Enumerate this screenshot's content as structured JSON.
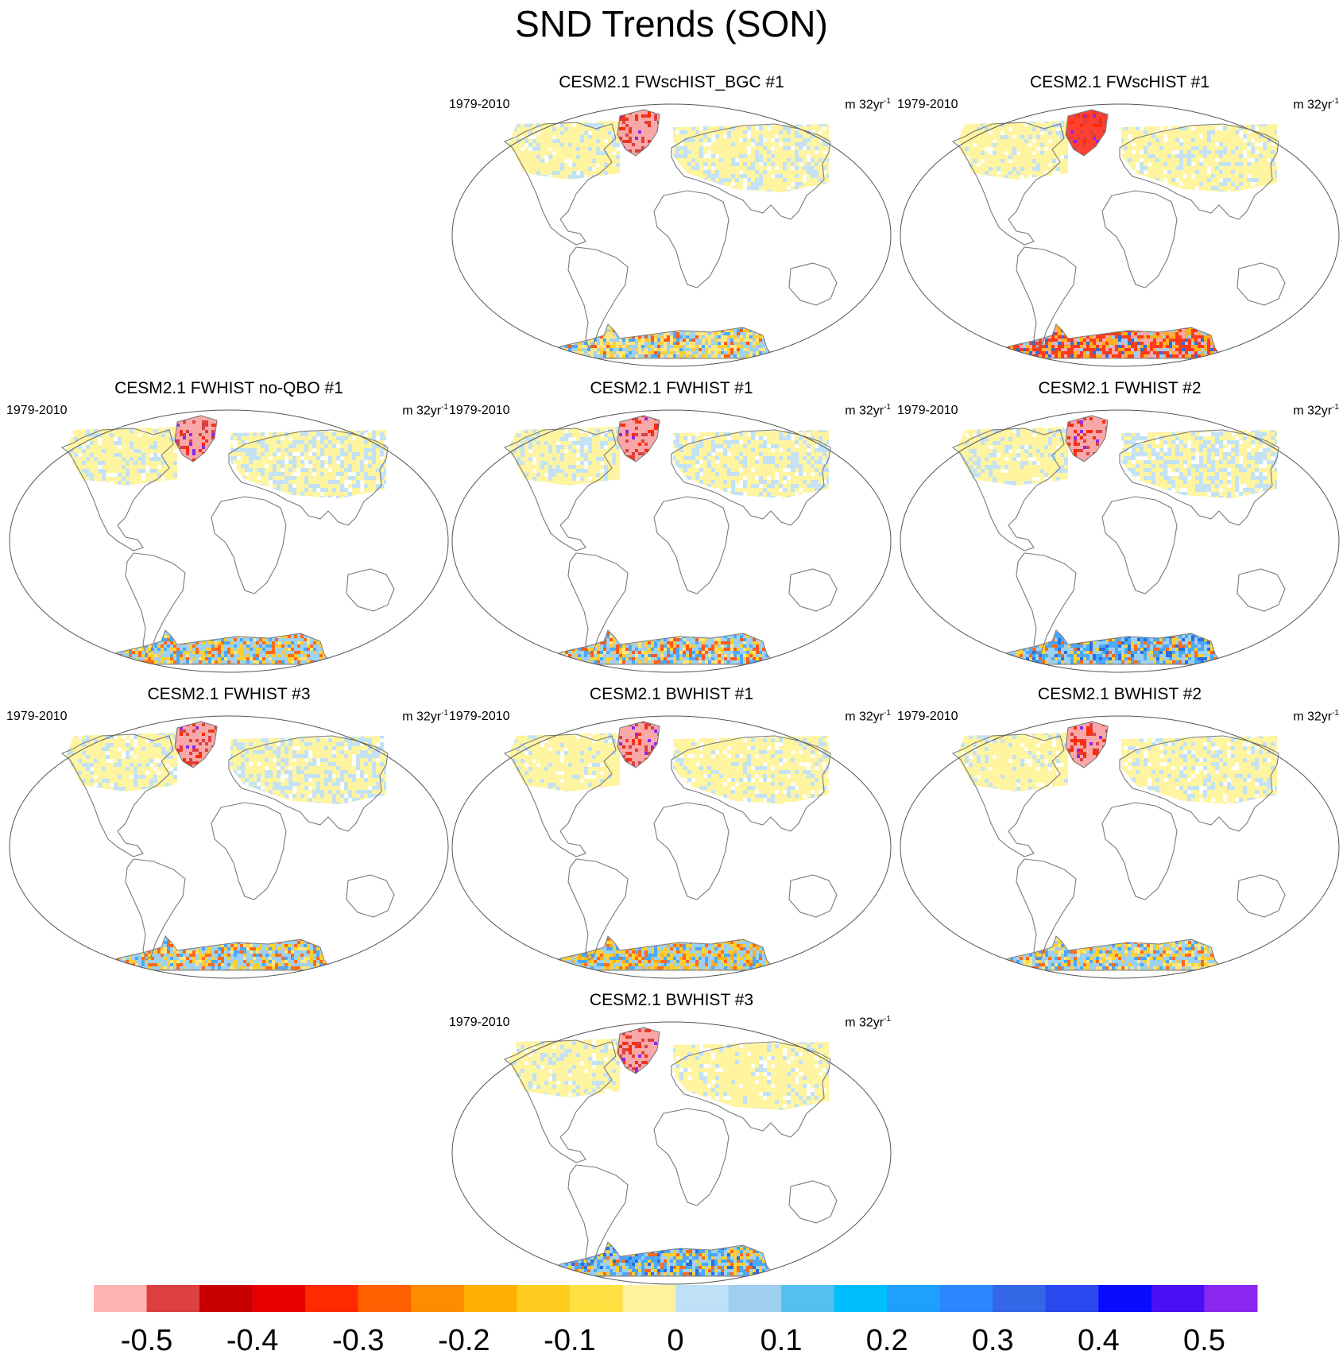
{
  "title": "SND Trends (SON)",
  "period": "1979-2010",
  "units": {
    "base": "m 32yr",
    "exponent": "-1"
  },
  "panels": [
    {
      "title": "CESM2.1 FWscHIST_BGC #1",
      "slot": "r0c1",
      "greenland": "#f8a8a8",
      "antarctic": [
        [
          "#ffe680",
          0.35
        ],
        [
          "#9ed0f0",
          0.3
        ],
        [
          "#ffd030",
          0.15
        ],
        [
          "#4aa8ff",
          0.1
        ],
        [
          "#ff5a1a",
          0.1
        ]
      ],
      "eurasia": [
        [
          "#fff4a0",
          0.7
        ],
        [
          "#c4e2f4",
          0.3
        ]
      ],
      "namerica": [
        [
          "#fff4a0",
          0.8
        ],
        [
          "#c4e2f4",
          0.2
        ]
      ]
    },
    {
      "title": "CESM2.1 FWscHIST #1",
      "slot": "r0c2",
      "greenland": "#ff4030",
      "antarctic": [
        [
          "#ff3a1a",
          0.35
        ],
        [
          "#f8a8a8",
          0.2
        ],
        [
          "#ffb020",
          0.25
        ],
        [
          "#9ed0f0",
          0.1
        ],
        [
          "#2a6fe0",
          0.1
        ]
      ],
      "eurasia": [
        [
          "#fff4a0",
          0.8
        ],
        [
          "#c4e2f4",
          0.2
        ]
      ],
      "namerica": [
        [
          "#fff4a0",
          0.85
        ],
        [
          "#c4e2f4",
          0.15
        ]
      ]
    },
    {
      "title": "CESM2.1 FWHIST no-QBO #1",
      "slot": "r1c0",
      "greenland": "#f8a8a8",
      "antarctic": [
        [
          "#9ed0f0",
          0.4
        ],
        [
          "#ffd030",
          0.25
        ],
        [
          "#4aa8ff",
          0.1
        ],
        [
          "#ff6a1a",
          0.15
        ],
        [
          "#ffe680",
          0.1
        ]
      ],
      "eurasia": [
        [
          "#fff4a0",
          0.65
        ],
        [
          "#c4e2f4",
          0.35
        ]
      ],
      "namerica": [
        [
          "#fff4a0",
          0.8
        ],
        [
          "#c4e2f4",
          0.2
        ]
      ]
    },
    {
      "title": "CESM2.1 FWHIST #1",
      "slot": "r1c1",
      "greenland": "#f8a8a8",
      "antarctic": [
        [
          "#9ed0f0",
          0.35
        ],
        [
          "#ff5a1a",
          0.2
        ],
        [
          "#ffd030",
          0.2
        ],
        [
          "#4aa8ff",
          0.15
        ],
        [
          "#ffe680",
          0.1
        ]
      ],
      "eurasia": [
        [
          "#fff4a0",
          0.7
        ],
        [
          "#c4e2f4",
          0.3
        ]
      ],
      "namerica": [
        [
          "#fff4a0",
          0.7
        ],
        [
          "#c4e2f4",
          0.3
        ]
      ]
    },
    {
      "title": "CESM2.1 FWHIST #2",
      "slot": "r1c2",
      "greenland": "#f8a8a8",
      "antarctic": [
        [
          "#4aa8ff",
          0.3
        ],
        [
          "#9ed0f0",
          0.3
        ],
        [
          "#2a6fe0",
          0.15
        ],
        [
          "#ffd030",
          0.15
        ],
        [
          "#ff6a1a",
          0.1
        ]
      ],
      "eurasia": [
        [
          "#fff4a0",
          0.6
        ],
        [
          "#c4e2f4",
          0.4
        ]
      ],
      "namerica": [
        [
          "#fff4a0",
          0.75
        ],
        [
          "#c4e2f4",
          0.25
        ]
      ]
    },
    {
      "title": "CESM2.1 FWHIST #3",
      "slot": "r2c0",
      "greenland": "#f8a8a8",
      "antarctic": [
        [
          "#9ed0f0",
          0.45
        ],
        [
          "#ffd030",
          0.2
        ],
        [
          "#ff6a1a",
          0.15
        ],
        [
          "#4aa8ff",
          0.1
        ],
        [
          "#ffe680",
          0.1
        ]
      ],
      "eurasia": [
        [
          "#fff4a0",
          0.6
        ],
        [
          "#c4e2f4",
          0.4
        ]
      ],
      "namerica": [
        [
          "#fff4a0",
          0.75
        ],
        [
          "#c4e2f4",
          0.25
        ]
      ]
    },
    {
      "title": "CESM2.1 BWHIST #1",
      "slot": "r2c1",
      "greenland": "#f8a8a8",
      "antarctic": [
        [
          "#9ed0f0",
          0.35
        ],
        [
          "#ffd030",
          0.25
        ],
        [
          "#ffb020",
          0.15
        ],
        [
          "#4aa8ff",
          0.15
        ],
        [
          "#ff6a1a",
          0.1
        ]
      ],
      "eurasia": [
        [
          "#fff4a0",
          0.8
        ],
        [
          "#c4e2f4",
          0.2
        ]
      ],
      "namerica": [
        [
          "#fff4a0",
          0.85
        ],
        [
          "#c4e2f4",
          0.15
        ]
      ]
    },
    {
      "title": "CESM2.1 BWHIST #2",
      "slot": "r2c2",
      "greenland": "#f8a8a8",
      "antarctic": [
        [
          "#9ed0f0",
          0.4
        ],
        [
          "#ffd030",
          0.2
        ],
        [
          "#ffe680",
          0.2
        ],
        [
          "#ff6a1a",
          0.1
        ],
        [
          "#4aa8ff",
          0.1
        ]
      ],
      "eurasia": [
        [
          "#fff4a0",
          0.8
        ],
        [
          "#c4e2f4",
          0.2
        ]
      ],
      "namerica": [
        [
          "#fff4a0",
          0.85
        ],
        [
          "#c4e2f4",
          0.15
        ]
      ]
    },
    {
      "title": "CESM2.1 BWHIST #3",
      "slot": "r3c1",
      "greenland": "#f8a8a8",
      "antarctic": [
        [
          "#4aa8ff",
          0.3
        ],
        [
          "#9ed0f0",
          0.3
        ],
        [
          "#ffd030",
          0.2
        ],
        [
          "#2a6fe0",
          0.1
        ],
        [
          "#ff6a1a",
          0.1
        ]
      ],
      "eurasia": [
        [
          "#fff4a0",
          0.85
        ],
        [
          "#c4e2f4",
          0.15
        ]
      ],
      "namerica": [
        [
          "#fff4a0",
          0.8
        ],
        [
          "#c4e2f4",
          0.2
        ]
      ]
    }
  ],
  "colorbar": {
    "colors": [
      "#ffb4b4",
      "#dc4040",
      "#c80000",
      "#e80000",
      "#ff2a00",
      "#ff6000",
      "#ff8c00",
      "#ffb000",
      "#ffcc20",
      "#ffe040",
      "#fff3a0",
      "#bfe1f7",
      "#9ecfef",
      "#54bff0",
      "#00bfff",
      "#1ea0ff",
      "#2a87ff",
      "#3467e6",
      "#2a48ee",
      "#0a0aff",
      "#4a10f5",
      "#8a28f0"
    ],
    "labels": [
      "-0.5",
      "-0.4",
      "-0.3",
      "-0.2",
      "-0.1",
      "0",
      "0.1",
      "0.2",
      "0.3",
      "0.4",
      "0.5"
    ]
  }
}
